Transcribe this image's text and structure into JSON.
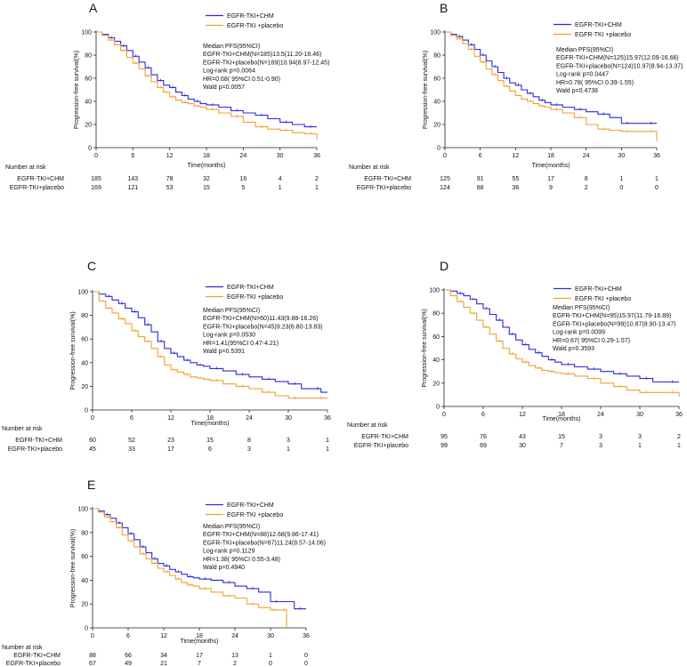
{
  "figure_title": "",
  "chart_data": [
    {
      "panel": "A",
      "type": "line",
      "title": "",
      "xlabel": "Time(months)",
      "ylabel": "Progression-free survival(%)",
      "xlim": [
        0,
        36
      ],
      "ylim": [
        0,
        100
      ],
      "xticks": [
        0,
        6,
        12,
        18,
        24,
        30,
        36
      ],
      "yticks": [
        0,
        20,
        40,
        60,
        80,
        100
      ],
      "legend": [
        {
          "label": "EGFR-TKI+CHM",
          "color": "#2b2bd9"
        },
        {
          "label": "EGFR-TKI +placebo",
          "color": "#f0a030"
        }
      ],
      "series": [
        {
          "name": "EGFR-TKI+CHM",
          "color": "#2b2bd9",
          "x": [
            0,
            1,
            2,
            3,
            4,
            5,
            6,
            7,
            8,
            9,
            10,
            11,
            12,
            13,
            14,
            15,
            16,
            17,
            18,
            20,
            22,
            24,
            26,
            28,
            30,
            32,
            34,
            36
          ],
          "y": [
            100,
            98,
            95,
            92,
            88,
            84,
            79,
            74,
            69,
            63,
            58,
            54,
            52,
            48,
            45,
            42,
            40,
            38,
            37,
            35,
            32,
            30,
            28,
            25,
            22,
            20,
            18,
            18
          ]
        },
        {
          "name": "EGFR-TKI +placebo",
          "color": "#f0a030",
          "x": [
            0,
            1,
            2,
            3,
            4,
            5,
            6,
            7,
            8,
            9,
            10,
            11,
            12,
            13,
            14,
            15,
            16,
            17,
            18,
            20,
            22,
            24,
            26,
            28,
            30,
            32,
            34,
            36
          ],
          "y": [
            100,
            97,
            93,
            89,
            84,
            78,
            73,
            68,
            62,
            57,
            52,
            48,
            44,
            41,
            39,
            38,
            36,
            35,
            33,
            30,
            27,
            22,
            18,
            16,
            15,
            13,
            12,
            7
          ]
        }
      ],
      "stats_text": [
        "Median PFS(95%CI)",
        "EGFR-TKI+CHM(N=185)13.5(11.20-16.46)",
        "EGFR-TKI+placebo(N=169)10.94(8.97-12.45)",
        "Log-rank p=0.0064",
        "HR=0.68( 95%CI 0.51-0.90)",
        "Wald p=0.0057"
      ],
      "risk_title": "Number at risk",
      "risk_rows": [
        {
          "label": "EGFR-TKI+CHM",
          "values": [
            "185",
            "143",
            "78",
            "32",
            "16",
            "4",
            "2"
          ]
        },
        {
          "label": "EGFR-TKI+placebo",
          "values": [
            "169",
            "121",
            "53",
            "15",
            "5",
            "1",
            "1"
          ]
        }
      ]
    },
    {
      "panel": "B",
      "type": "line",
      "title": "",
      "xlabel": "Time(months)",
      "ylabel": "Progression-free survival(%)",
      "xlim": [
        0,
        36
      ],
      "ylim": [
        0,
        100
      ],
      "xticks": [
        0,
        6,
        12,
        18,
        24,
        30,
        36
      ],
      "yticks": [
        0,
        20,
        40,
        60,
        80,
        100
      ],
      "legend": [
        {
          "label": "EGFR-TKI+CHM",
          "color": "#2b2bd9"
        },
        {
          "label": "EGFR-TKI +placebo",
          "color": "#f0a030"
        }
      ],
      "series": [
        {
          "name": "EGFR-TKI+CHM",
          "color": "#2b2bd9",
          "x": [
            0,
            1,
            2,
            3,
            4,
            5,
            6,
            7,
            8,
            9,
            10,
            11,
            12,
            13,
            14,
            15,
            16,
            17,
            18,
            20,
            22,
            24,
            26,
            28,
            30,
            32,
            34,
            36
          ],
          "y": [
            100,
            98,
            96,
            93,
            89,
            85,
            80,
            75,
            70,
            65,
            60,
            56,
            54,
            50,
            47,
            44,
            41,
            39,
            37,
            35,
            33,
            31,
            29,
            26,
            21,
            21,
            21,
            21
          ]
        },
        {
          "name": "EGFR-TKI +placebo",
          "color": "#f0a030",
          "x": [
            0,
            1,
            2,
            3,
            4,
            5,
            6,
            7,
            8,
            9,
            10,
            11,
            12,
            13,
            14,
            15,
            16,
            17,
            18,
            20,
            22,
            24,
            26,
            28,
            30,
            32,
            34,
            36
          ],
          "y": [
            100,
            97,
            94,
            90,
            85,
            79,
            74,
            68,
            63,
            58,
            53,
            49,
            45,
            42,
            40,
            38,
            36,
            35,
            33,
            30,
            26,
            20,
            16,
            15,
            14,
            14,
            14,
            6
          ]
        }
      ],
      "stats_text": [
        "Median PFS(95%CI)",
        "EGFR-TKI+CHM(N=125)15.97(12.09-16.66)",
        "EGFR-TKI+placebo(N=124)10.97(8.94-13.37)",
        "Log-rank p=0.0447",
        "HR=0.78( 95%CI 0.39-1.55)",
        "Wald p=0.4738"
      ],
      "risk_title": "Number at risk",
      "risk_rows": [
        {
          "label": "EGFR-TKI+CHM",
          "values": [
            "125",
            "91",
            "55",
            "17",
            "8",
            "1",
            "1"
          ]
        },
        {
          "label": "EGFR-TKI+placebo",
          "values": [
            "124",
            "88",
            "36",
            "9",
            "2",
            "0",
            "0"
          ]
        }
      ]
    },
    {
      "panel": "C",
      "type": "line",
      "title": "",
      "xlabel": "Time(months)",
      "ylabel": "Progression-free survival(%)",
      "xlim": [
        0,
        36
      ],
      "ylim": [
        0,
        100
      ],
      "xticks": [
        0,
        6,
        12,
        18,
        24,
        30,
        36
      ],
      "yticks": [
        0,
        20,
        40,
        60,
        80,
        100
      ],
      "legend": [
        {
          "label": "EGFR-TKI+CHM",
          "color": "#2b2bd9"
        },
        {
          "label": "EGFR-TKI +placebo",
          "color": "#f0a030"
        }
      ],
      "series": [
        {
          "name": "EGFR-TKI+CHM",
          "color": "#2b2bd9",
          "x": [
            0,
            1,
            2,
            3,
            4,
            5,
            6,
            7,
            8,
            9,
            10,
            11,
            12,
            13,
            14,
            15,
            16,
            17,
            18,
            20,
            22,
            24,
            26,
            28,
            30,
            32,
            34,
            35,
            36
          ],
          "y": [
            100,
            98,
            96,
            93,
            90,
            86,
            83,
            78,
            72,
            66,
            58,
            52,
            48,
            45,
            42,
            40,
            38,
            37,
            35,
            33,
            30,
            28,
            26,
            24,
            22,
            18,
            18,
            15,
            15
          ]
        },
        {
          "name": "EGFR-TKI +placebo",
          "color": "#f0a030",
          "x": [
            0,
            1,
            2,
            3,
            4,
            5,
            6,
            7,
            8,
            9,
            10,
            11,
            12,
            13,
            14,
            15,
            16,
            17,
            18,
            20,
            22,
            24,
            26,
            28,
            30,
            32,
            34,
            36
          ],
          "y": [
            100,
            92,
            86,
            82,
            77,
            73,
            67,
            62,
            58,
            52,
            45,
            38,
            34,
            32,
            30,
            28,
            27,
            26,
            25,
            22,
            20,
            18,
            15,
            12,
            10,
            10,
            10,
            10
          ]
        }
      ],
      "stats_text": [
        "Median PFS(95%CI)",
        "EGFR-TKI+CHM(N=60)11.43(9.88-16.26)",
        "EGFR-TKI+placebo(N=45)9.23(6.80-13.83)",
        "Log-rank p=0.0530",
        "HR=1.41(95%CI 0.47-4.21)",
        "Wald p=0.5391"
      ],
      "risk_title": "Number at risk",
      "risk_rows": [
        {
          "label": "EGFR-TKI+CHM",
          "values": [
            "60",
            "52",
            "23",
            "15",
            "8",
            "3",
            "1"
          ]
        },
        {
          "label": "EGFR-TKI+placebo",
          "values": [
            "45",
            "33",
            "17",
            "6",
            "3",
            "1",
            "1"
          ]
        }
      ]
    },
    {
      "panel": "D",
      "type": "line",
      "title": "",
      "xlabel": "Time(months)",
      "ylabel": "Progression-free survival(%)",
      "xlim": [
        0,
        36
      ],
      "ylim": [
        0,
        100
      ],
      "xticks": [
        0,
        6,
        12,
        18,
        24,
        30,
        36
      ],
      "yticks": [
        0,
        20,
        40,
        60,
        80,
        100
      ],
      "legend": [
        {
          "label": "EGFR-TKI+CHM",
          "color": "#2b2bd9"
        },
        {
          "label": "EGFR-TKI +placebo",
          "color": "#f0a030"
        }
      ],
      "series": [
        {
          "name": "EGFR-TKI+CHM",
          "color": "#2b2bd9",
          "x": [
            0,
            1,
            2,
            3,
            4,
            5,
            6,
            7,
            8,
            9,
            10,
            11,
            12,
            13,
            14,
            15,
            16,
            17,
            18,
            20,
            22,
            24,
            26,
            28,
            30,
            32,
            34,
            36
          ],
          "y": [
            100,
            99,
            97,
            95,
            92,
            88,
            84,
            79,
            74,
            68,
            62,
            57,
            53,
            49,
            46,
            43,
            40,
            38,
            36,
            34,
            32,
            30,
            28,
            26,
            24,
            21,
            21,
            21
          ]
        },
        {
          "name": "EGFR-TKI +placebo",
          "color": "#f0a030",
          "x": [
            0,
            1,
            2,
            3,
            4,
            5,
            6,
            7,
            8,
            9,
            10,
            11,
            12,
            13,
            14,
            15,
            16,
            17,
            18,
            20,
            22,
            24,
            26,
            28,
            30,
            32,
            34,
            36
          ],
          "y": [
            100,
            95,
            90,
            85,
            80,
            74,
            68,
            62,
            56,
            50,
            45,
            41,
            38,
            35,
            33,
            31,
            30,
            29,
            28,
            26,
            24,
            20,
            17,
            14,
            12,
            12,
            12,
            8
          ]
        }
      ],
      "stats_text": [
        "Median PFS(95%CI)",
        "EGFR-TKI+CHM(N=95)15.97(11.79-16.89)",
        "EGFR-TKI+placebo(N=99)10.87(8.90-13.47)",
        "Log-rank p=0.0099",
        "HR=0.67( 95%CI 0.29-1.57)",
        "Wald p=0.3593"
      ],
      "risk_title": "Number at risk",
      "risk_rows": [
        {
          "label": "EGFR-TKI+CHM",
          "values": [
            "95",
            "76",
            "43",
            "15",
            "3",
            "3",
            "2"
          ]
        },
        {
          "label": "EGFR-TKI+placebo",
          "values": [
            "99",
            "69",
            "30",
            "7",
            "3",
            "1",
            "1"
          ]
        }
      ]
    },
    {
      "panel": "E",
      "type": "line",
      "title": "",
      "xlabel": "Time(months)",
      "ylabel": "Progression-free survival(%)",
      "xlim": [
        0,
        36
      ],
      "ylim": [
        0,
        100
      ],
      "xticks": [
        0,
        6,
        12,
        18,
        24,
        30,
        36
      ],
      "yticks": [
        0,
        20,
        40,
        60,
        80,
        100
      ],
      "legend": [
        {
          "label": "EGFR-TKI+CHM",
          "color": "#2b2bd9"
        },
        {
          "label": "EGFR-TKI +placebo",
          "color": "#f0a030"
        }
      ],
      "series": [
        {
          "name": "EGFR-TKI+CHM",
          "color": "#2b2bd9",
          "x": [
            0,
            1,
            2,
            3,
            4,
            5,
            6,
            7,
            8,
            9,
            10,
            11,
            12,
            13,
            14,
            15,
            16,
            17,
            18,
            20,
            22,
            24,
            26,
            28,
            30,
            32,
            34,
            36
          ],
          "y": [
            100,
            98,
            95,
            92,
            88,
            84,
            79,
            74,
            68,
            63,
            58,
            54,
            52,
            49,
            47,
            45,
            43,
            42,
            41,
            40,
            38,
            35,
            33,
            30,
            22,
            22,
            16,
            16
          ]
        },
        {
          "name": "EGFR-TKI +placebo",
          "color": "#f0a030",
          "x": [
            0,
            1,
            2,
            3,
            4,
            5,
            6,
            7,
            8,
            9,
            10,
            11,
            12,
            13,
            14,
            15,
            16,
            17,
            18,
            20,
            22,
            24,
            26,
            28,
            30,
            31,
            32,
            32.6,
            32.7
          ],
          "y": [
            100,
            97,
            93,
            89,
            84,
            78,
            73,
            68,
            62,
            58,
            54,
            50,
            47,
            44,
            41,
            38,
            36,
            35,
            33,
            30,
            27,
            25,
            20,
            17,
            15,
            15,
            15,
            15,
            0
          ]
        }
      ],
      "stats_text": [
        "Median PFS(95%CI)",
        "EGFR-TKI+CHM(N=88)12.68(9.86-17.41)",
        "EGFR-TKI+placebo(N=67)11.24(8.57-14.06)",
        "Log-rank p=0.1129",
        "HR=1.38( 95%CI 0.55-3.48)",
        "Wald p=0.4940"
      ],
      "risk_title": "Number at risk",
      "risk_rows": [
        {
          "label": "EGFR-TKI+CHM",
          "values": [
            "88",
            "66",
            "34",
            "17",
            "13",
            "1",
            "0"
          ]
        },
        {
          "label": "EGFR-TKI+placebo",
          "values": [
            "67",
            "49",
            "21",
            "7",
            "2",
            "0",
            "0"
          ]
        }
      ]
    }
  ]
}
